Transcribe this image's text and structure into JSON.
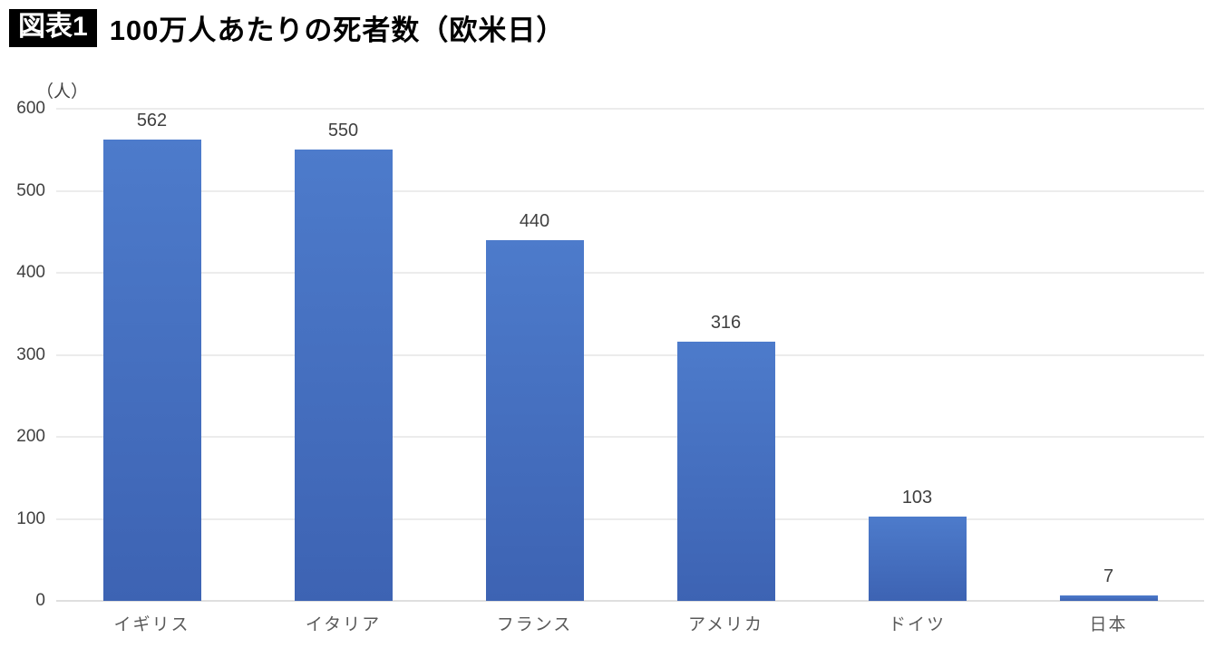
{
  "header": {
    "badge": "図表1",
    "title": "100万人あたりの死者数（欧米日）"
  },
  "chart_data": {
    "type": "bar",
    "title": "100万人あたりの死者数（欧米日）",
    "unit_label": "（人）",
    "categories": [
      "イギリス",
      "イタリア",
      "フランス",
      "アメリカ",
      "ドイツ",
      "日本"
    ],
    "values": [
      562,
      550,
      440,
      316,
      103,
      7
    ],
    "ylim": [
      0,
      600
    ],
    "ytick_step": 100,
    "grid": "horizontal",
    "legend": "none",
    "bar_color_top": "#4d7bcb",
    "bar_color_bottom": "#3d63b3",
    "gridline_color": "#d9d9d9",
    "axis_line_color": "#bfbfbf"
  }
}
